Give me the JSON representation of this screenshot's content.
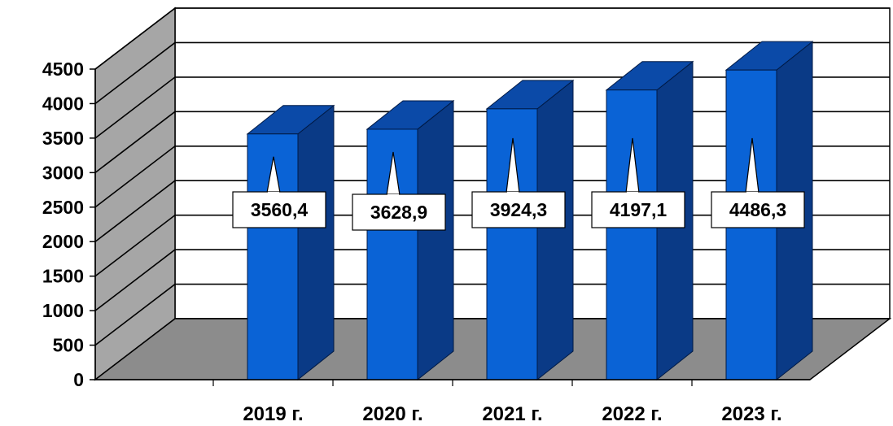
{
  "chart_data": {
    "type": "bar",
    "style": "3d-column",
    "categories": [
      "2019 г.",
      "2020 г.",
      "2021 г.",
      "2022 г.",
      "2023 г."
    ],
    "values": [
      3560.4,
      3628.9,
      3924.3,
      4197.1,
      4486.3
    ],
    "data_labels": [
      "3560,4",
      "3628,9",
      "3924,3",
      "4197,1",
      "4486,3"
    ],
    "yticks": [
      "0",
      "500",
      "1000",
      "1500",
      "2000",
      "2500",
      "3000",
      "3500",
      "4000",
      "4500"
    ],
    "ylim": [
      0,
      4500
    ],
    "grid": true,
    "legend": "none",
    "colors": {
      "bar_front": "#0a63d6",
      "bar_side": "#0a3a86",
      "bar_top": "#0b4aa8",
      "floor": "#8c8c8c",
      "left_wall": "#a6a6a6",
      "back_wall": "#ffffff",
      "gridline": "#000000"
    }
  }
}
